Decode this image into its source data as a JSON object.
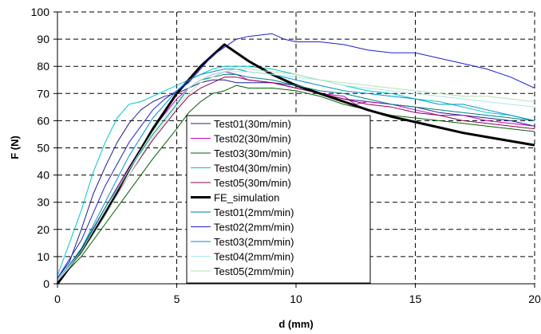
{
  "chart_data": {
    "type": "line",
    "title": "",
    "xlabel": "d (mm)",
    "ylabel": "F (N)",
    "xlim": [
      0,
      20
    ],
    "ylim": [
      0,
      100
    ],
    "x_ticks": [
      0,
      5,
      10,
      15,
      20
    ],
    "y_ticks": [
      0,
      10,
      20,
      30,
      40,
      50,
      60,
      70,
      80,
      90,
      100
    ],
    "grid": "dashed",
    "legend_position": "center-left",
    "series": [
      {
        "name": "Test01(30m/min)",
        "color": "#1f1f8f",
        "width": 1,
        "points": [
          [
            0,
            2
          ],
          [
            0.5,
            8
          ],
          [
            1,
            20
          ],
          [
            1.5,
            33
          ],
          [
            2,
            43
          ],
          [
            2.5,
            52
          ],
          [
            3,
            59
          ],
          [
            3.5,
            64
          ],
          [
            4,
            67
          ],
          [
            4.5,
            69
          ],
          [
            5,
            70
          ],
          [
            5.5,
            72
          ],
          [
            6,
            74
          ],
          [
            6.5,
            75
          ],
          [
            7,
            75
          ],
          [
            7.5,
            74
          ],
          [
            8,
            74
          ],
          [
            9,
            74
          ],
          [
            10,
            73
          ],
          [
            11,
            70
          ],
          [
            12,
            68
          ],
          [
            13,
            67
          ],
          [
            14,
            66
          ],
          [
            15,
            65
          ],
          [
            16,
            63
          ],
          [
            17,
            62
          ],
          [
            18,
            61
          ],
          [
            19,
            60
          ],
          [
            20,
            58
          ]
        ]
      },
      {
        "name": "Test02(30m/min)",
        "color": "#c000c0",
        "width": 1,
        "points": [
          [
            0,
            1
          ],
          [
            1,
            12
          ],
          [
            2,
            28
          ],
          [
            3,
            43
          ],
          [
            4,
            57
          ],
          [
            5,
            68
          ],
          [
            5.5,
            72
          ],
          [
            6,
            75
          ],
          [
            6.5,
            77
          ],
          [
            7,
            78
          ],
          [
            7.5,
            77
          ],
          [
            8,
            75
          ],
          [
            9,
            74
          ],
          [
            10,
            72
          ],
          [
            11,
            70
          ],
          [
            12,
            69
          ],
          [
            12.5,
            66
          ],
          [
            13,
            67
          ],
          [
            14,
            66
          ],
          [
            15,
            64
          ],
          [
            16,
            62
          ],
          [
            17,
            62
          ],
          [
            18,
            60
          ],
          [
            19,
            59
          ],
          [
            20,
            58
          ]
        ]
      },
      {
        "name": "Test03(30m/min)",
        "color": "#006000",
        "width": 1,
        "points": [
          [
            0,
            1
          ],
          [
            1,
            10
          ],
          [
            2,
            22
          ],
          [
            3,
            34
          ],
          [
            4,
            46
          ],
          [
            5,
            57
          ],
          [
            5.5,
            63
          ],
          [
            6,
            67
          ],
          [
            6.5,
            70
          ],
          [
            7,
            71
          ],
          [
            7.5,
            73
          ],
          [
            8,
            72
          ],
          [
            9,
            72
          ],
          [
            10,
            71
          ],
          [
            11,
            69
          ],
          [
            12,
            66
          ],
          [
            13,
            64
          ],
          [
            14,
            62
          ],
          [
            15,
            61
          ],
          [
            16,
            60
          ],
          [
            17,
            59
          ],
          [
            18,
            58
          ],
          [
            19,
            57
          ],
          [
            20,
            56
          ]
        ]
      },
      {
        "name": "Test04(30m/min)",
        "color": "#00c8c8",
        "width": 1,
        "points": [
          [
            0,
            3
          ],
          [
            0.5,
            15
          ],
          [
            1,
            27
          ],
          [
            1.5,
            41
          ],
          [
            2,
            52
          ],
          [
            2.5,
            61
          ],
          [
            3,
            66
          ],
          [
            3.5,
            67
          ],
          [
            4,
            69
          ],
          [
            4.5,
            71
          ],
          [
            5,
            73
          ],
          [
            5.5,
            75
          ],
          [
            6,
            77
          ],
          [
            6.5,
            79
          ],
          [
            7,
            80
          ],
          [
            8,
            80
          ],
          [
            9,
            79
          ],
          [
            10,
            77
          ],
          [
            11,
            75
          ],
          [
            12,
            73
          ],
          [
            13,
            71
          ],
          [
            14,
            70
          ],
          [
            15,
            68
          ],
          [
            16,
            67
          ],
          [
            17,
            65
          ],
          [
            18,
            63
          ],
          [
            19,
            62
          ],
          [
            20,
            60
          ]
        ]
      },
      {
        "name": "Test05(30m/min)",
        "color": "#8b0050",
        "width": 1,
        "points": [
          [
            0,
            1
          ],
          [
            1,
            12
          ],
          [
            2,
            26
          ],
          [
            3,
            40
          ],
          [
            4,
            53
          ],
          [
            5,
            64
          ],
          [
            5.5,
            69
          ],
          [
            6,
            72
          ],
          [
            6.5,
            74
          ],
          [
            7,
            76
          ],
          [
            7.5,
            76
          ],
          [
            8,
            75
          ],
          [
            9,
            74
          ],
          [
            10,
            72
          ],
          [
            11,
            70
          ],
          [
            12,
            68
          ],
          [
            13,
            66
          ],
          [
            14,
            65
          ],
          [
            15,
            63
          ],
          [
            16,
            62
          ],
          [
            17,
            60
          ],
          [
            18,
            59
          ],
          [
            19,
            58
          ],
          [
            20,
            57
          ]
        ]
      },
      {
        "name": "FE_simulation",
        "color": "#000000",
        "width": 3,
        "points": [
          [
            0,
            0
          ],
          [
            1,
            12
          ],
          [
            2,
            26
          ],
          [
            3,
            42
          ],
          [
            4,
            57
          ],
          [
            5,
            70
          ],
          [
            6,
            80
          ],
          [
            7,
            88
          ],
          [
            8,
            82
          ],
          [
            9,
            77
          ],
          [
            10,
            73
          ],
          [
            11,
            70
          ],
          [
            12,
            67
          ],
          [
            13,
            64
          ],
          [
            14,
            61.5
          ],
          [
            15,
            59.5
          ],
          [
            16,
            57.5
          ],
          [
            17,
            55.5
          ],
          [
            18,
            54
          ],
          [
            19,
            52.5
          ],
          [
            20,
            51
          ]
        ]
      },
      {
        "name": "Test01(2mm/min)",
        "color": "#008080",
        "width": 1,
        "points": [
          [
            0,
            1
          ],
          [
            1,
            13
          ],
          [
            2,
            28
          ],
          [
            3,
            42
          ],
          [
            4,
            55
          ],
          [
            5,
            66
          ],
          [
            5.5,
            72
          ],
          [
            6,
            75
          ],
          [
            6.5,
            76
          ],
          [
            7,
            77
          ],
          [
            7.5,
            77
          ],
          [
            8,
            76
          ],
          [
            9,
            75
          ],
          [
            10,
            73
          ],
          [
            11,
            71
          ],
          [
            12,
            70
          ],
          [
            13,
            68
          ],
          [
            14,
            66
          ],
          [
            15,
            65
          ],
          [
            16,
            64
          ],
          [
            17,
            63
          ],
          [
            18,
            62
          ],
          [
            19,
            61
          ],
          [
            20,
            60
          ]
        ]
      },
      {
        "name": "Test02(2mm/min)",
        "color": "#2020d0",
        "width": 1,
        "points": [
          [
            0,
            2
          ],
          [
            1,
            16
          ],
          [
            2,
            36
          ],
          [
            3,
            52
          ],
          [
            4,
            64
          ],
          [
            4.5,
            68
          ],
          [
            5,
            71
          ],
          [
            5.5,
            74
          ],
          [
            6,
            79
          ],
          [
            6.5,
            84
          ],
          [
            7,
            87
          ],
          [
            7.5,
            90
          ],
          [
            8,
            91
          ],
          [
            8.5,
            91.5
          ],
          [
            9,
            92
          ],
          [
            9.5,
            90
          ],
          [
            10,
            89
          ],
          [
            11,
            89
          ],
          [
            12,
            88
          ],
          [
            13,
            86
          ],
          [
            14,
            85
          ],
          [
            15,
            85
          ],
          [
            16,
            83
          ],
          [
            17,
            81
          ],
          [
            18,
            79
          ],
          [
            19,
            76
          ],
          [
            20,
            72
          ]
        ]
      },
      {
        "name": "Test03(2mm/min)",
        "color": "#0090d0",
        "width": 1,
        "points": [
          [
            0,
            1
          ],
          [
            1,
            13
          ],
          [
            2,
            30
          ],
          [
            3,
            47
          ],
          [
            4,
            61
          ],
          [
            5,
            71
          ],
          [
            5.5,
            75
          ],
          [
            6,
            77
          ],
          [
            6.5,
            78
          ],
          [
            7,
            79
          ],
          [
            7.5,
            79
          ],
          [
            8,
            78
          ],
          [
            9,
            77
          ],
          [
            10,
            75
          ],
          [
            11,
            73
          ],
          [
            12,
            71
          ],
          [
            13,
            70
          ],
          [
            14,
            69
          ],
          [
            15,
            68
          ],
          [
            16,
            66
          ],
          [
            17,
            66
          ],
          [
            18,
            64
          ],
          [
            19,
            62
          ],
          [
            20,
            60
          ]
        ]
      },
      {
        "name": "Test04(2mm/min)",
        "color": "#a8e8e8",
        "width": 1,
        "points": [
          [
            0,
            1
          ],
          [
            1,
            12
          ],
          [
            2,
            27
          ],
          [
            3,
            42
          ],
          [
            4,
            56
          ],
          [
            5,
            67
          ],
          [
            5.5,
            72
          ],
          [
            6,
            75
          ],
          [
            6.5,
            77
          ],
          [
            7,
            78
          ],
          [
            7.5,
            78
          ],
          [
            8,
            78
          ],
          [
            9,
            77
          ],
          [
            10,
            76
          ],
          [
            11,
            75
          ],
          [
            12,
            73
          ],
          [
            13,
            72
          ],
          [
            14,
            71
          ],
          [
            15,
            70
          ],
          [
            16,
            69
          ],
          [
            17,
            68
          ],
          [
            18,
            67
          ],
          [
            19,
            66
          ],
          [
            20,
            65
          ]
        ]
      },
      {
        "name": "Test05(2mm/min)",
        "color": "#b8e0b0",
        "width": 1,
        "points": [
          [
            0,
            1
          ],
          [
            1,
            11
          ],
          [
            2,
            25
          ],
          [
            3,
            40
          ],
          [
            4,
            54
          ],
          [
            5,
            65
          ],
          [
            5.5,
            70
          ],
          [
            6,
            74
          ],
          [
            6.5,
            76
          ],
          [
            7,
            78
          ],
          [
            7.5,
            79
          ],
          [
            8,
            79
          ],
          [
            9,
            78
          ],
          [
            10,
            77
          ],
          [
            11,
            75
          ],
          [
            12,
            74
          ],
          [
            13,
            73
          ],
          [
            14,
            72
          ],
          [
            15,
            71
          ],
          [
            16,
            70
          ],
          [
            17,
            69
          ],
          [
            18,
            69
          ],
          [
            19,
            68
          ],
          [
            20,
            67
          ]
        ]
      }
    ]
  }
}
